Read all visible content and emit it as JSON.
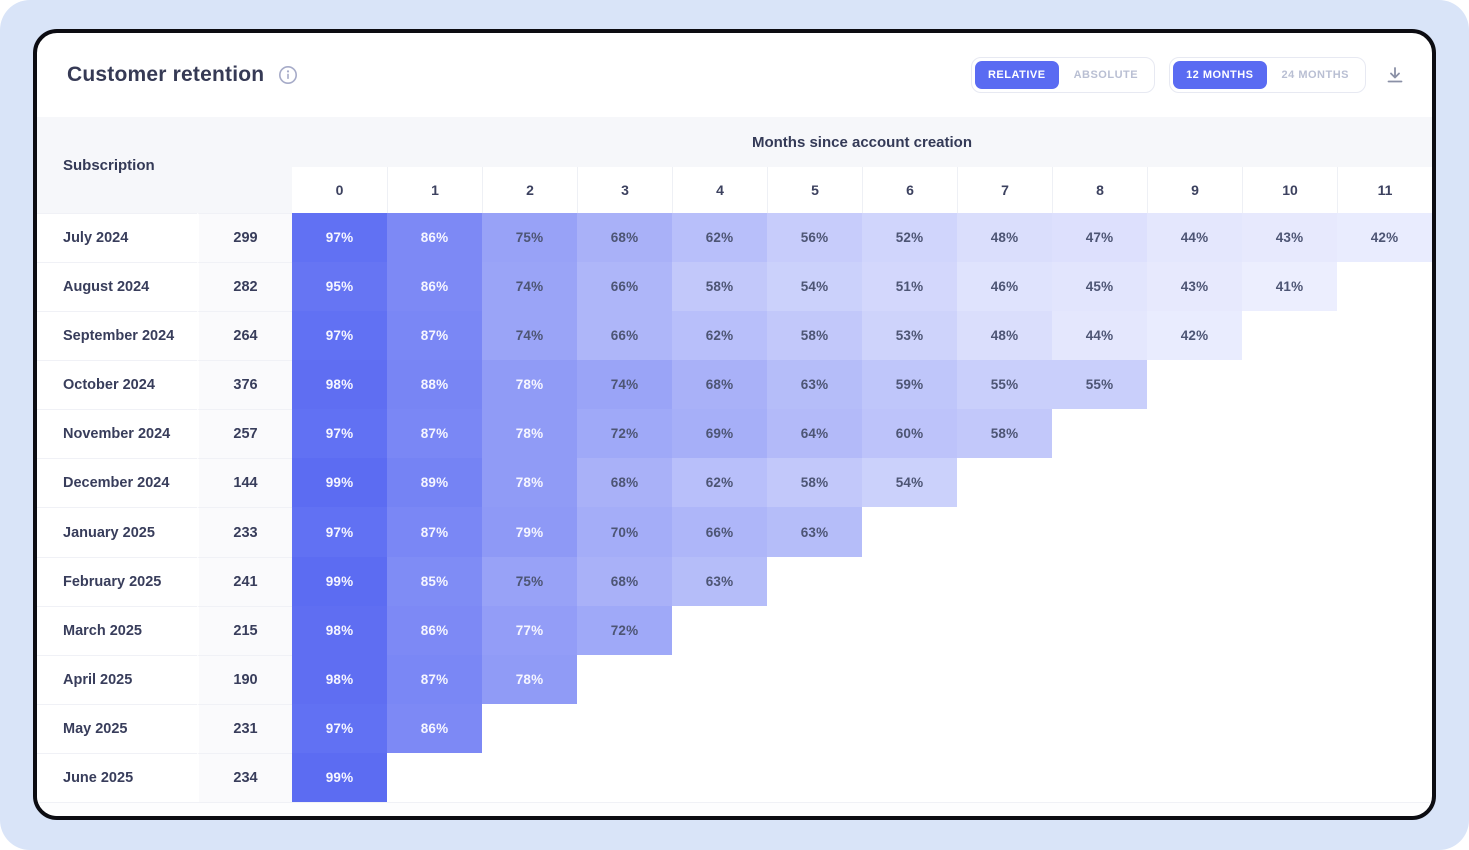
{
  "page": {
    "panel_bg": "#d9e4f8",
    "card_bg": "#ffffff",
    "card_border": "#0c0c12"
  },
  "header": {
    "title": "Customer retention",
    "info_icon": "info-icon"
  },
  "controls": {
    "view_toggle": {
      "options": [
        {
          "label": "RELATIVE",
          "active": true
        },
        {
          "label": "ABSOLUTE",
          "active": false
        }
      ]
    },
    "range_toggle": {
      "options": [
        {
          "label": "12 MONTHS",
          "active": true
        },
        {
          "label": "24 MONTHS",
          "active": false
        }
      ]
    },
    "download_icon": "download-icon"
  },
  "colors": {
    "accent": "#5a6bf2",
    "heat_min": "#eef0fe",
    "heat_max": "#5a6af2",
    "heat_scale_domain": [
      40,
      100
    ],
    "heat_text_light": "#f6f6ff",
    "heat_text_dark": "#4d5574",
    "white_text_threshold": 76
  },
  "chart_data": {
    "type": "heatmap",
    "title": "Customer retention",
    "xlabel": "Months since account creation",
    "ylabel": "Subscription",
    "x": [
      0,
      1,
      2,
      3,
      4,
      5,
      6,
      7,
      8,
      9,
      10,
      11
    ],
    "unit": "%",
    "rows": [
      {
        "cohort": "July 2024",
        "count": 299,
        "values": [
          97,
          86,
          75,
          68,
          62,
          56,
          52,
          48,
          47,
          44,
          43,
          42
        ]
      },
      {
        "cohort": "August 2024",
        "count": 282,
        "values": [
          95,
          86,
          74,
          66,
          58,
          54,
          51,
          46,
          45,
          43,
          41
        ]
      },
      {
        "cohort": "September 2024",
        "count": 264,
        "values": [
          97,
          87,
          74,
          66,
          62,
          58,
          53,
          48,
          44,
          42
        ]
      },
      {
        "cohort": "October 2024",
        "count": 376,
        "values": [
          98,
          88,
          78,
          74,
          68,
          63,
          59,
          55,
          55
        ]
      },
      {
        "cohort": "November 2024",
        "count": 257,
        "values": [
          97,
          87,
          78,
          72,
          69,
          64,
          60,
          58
        ]
      },
      {
        "cohort": "December 2024",
        "count": 144,
        "values": [
          99,
          89,
          78,
          68,
          62,
          58,
          54
        ]
      },
      {
        "cohort": "January 2025",
        "count": 233,
        "values": [
          97,
          87,
          79,
          70,
          66,
          63
        ]
      },
      {
        "cohort": "February 2025",
        "count": 241,
        "values": [
          99,
          85,
          75,
          68,
          63
        ]
      },
      {
        "cohort": "March 2025",
        "count": 215,
        "values": [
          98,
          86,
          77,
          72
        ]
      },
      {
        "cohort": "April 2025",
        "count": 190,
        "values": [
          98,
          87,
          78
        ]
      },
      {
        "cohort": "May 2025",
        "count": 231,
        "values": [
          97,
          86
        ]
      },
      {
        "cohort": "June 2025",
        "count": 234,
        "values": [
          99
        ]
      }
    ]
  },
  "table": {
    "left_header": "Subscription",
    "months_header": "Months since account creation"
  }
}
